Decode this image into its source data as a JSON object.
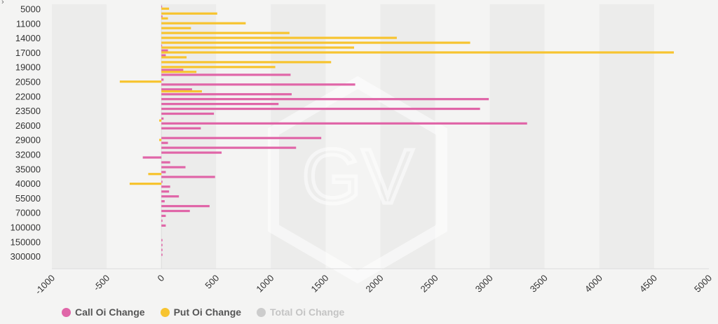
{
  "corner_glyph": "›",
  "watermark_text": "GV",
  "colors": {
    "call": "#e066a8",
    "put": "#f7c430",
    "total": "#cccccc",
    "band_light": "#f4f4f3",
    "band_dark": "#ececeb",
    "axis": "#dcdcdc"
  },
  "legend": [
    {
      "key": "call",
      "label": "Call Oi Change",
      "active": true
    },
    {
      "key": "put",
      "label": "Put Oi Change",
      "active": true
    },
    {
      "key": "total",
      "label": "Total Oi Change",
      "active": false
    }
  ],
  "chart_data": {
    "type": "bar",
    "orientation": "horizontal",
    "title": "",
    "xlabel": "",
    "ylabel": "",
    "xlim": [
      -1000,
      5000
    ],
    "x_ticks": [
      -1000,
      -500,
      0,
      500,
      1000,
      1500,
      2000,
      2500,
      3000,
      3500,
      4000,
      4500,
      5000
    ],
    "y_tick_labels": [
      "5000",
      "11000",
      "14000",
      "17000",
      "19000",
      "20500",
      "22000",
      "23500",
      "26000",
      "29000",
      "32000",
      "35000",
      "40000",
      "55000",
      "70000",
      "100000",
      "150000",
      "300000"
    ],
    "grid": "alternating vertical bands",
    "legend_position": "bottom-left",
    "series": [
      {
        "name": "Call Oi Change",
        "values": [
          5,
          0,
          10,
          0,
          0,
          0,
          0,
          0,
          5,
          60,
          40,
          0,
          0,
          200,
          1180,
          20,
          1770,
          280,
          1190,
          2990,
          1070,
          2910,
          480,
          20,
          3340,
          360,
          0,
          1460,
          60,
          1230,
          550,
          -170,
          80,
          220,
          40,
          490,
          10,
          80,
          70,
          160,
          30,
          440,
          260,
          40,
          10,
          40,
          0,
          0,
          10,
          10,
          10,
          10,
          0,
          0
        ]
      },
      {
        "name": "Put Oi Change",
        "values": [
          70,
          510,
          60,
          770,
          270,
          1170,
          2150,
          2820,
          1760,
          4680,
          230,
          1550,
          1040,
          320,
          0,
          -380,
          0,
          370,
          0,
          0,
          0,
          0,
          0,
          -20,
          0,
          0,
          0,
          -20,
          0,
          0,
          0,
          0,
          0,
          0,
          -120,
          0,
          -290,
          0,
          0,
          0,
          0,
          0,
          0,
          0,
          0,
          0,
          0,
          0,
          0,
          0,
          0,
          0,
          0,
          0
        ]
      }
    ]
  }
}
